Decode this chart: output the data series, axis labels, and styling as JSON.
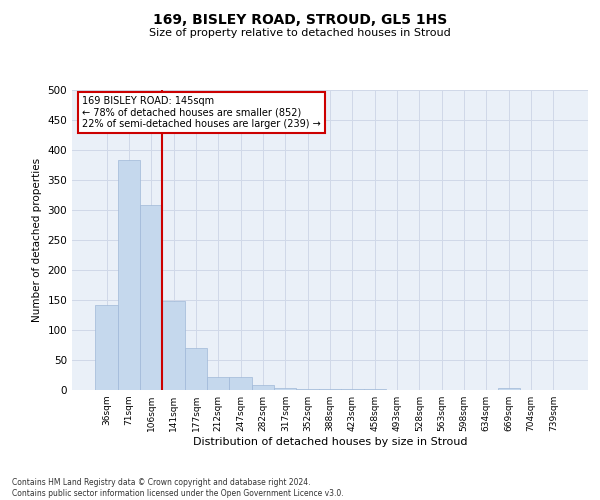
{
  "title1": "169, BISLEY ROAD, STROUD, GL5 1HS",
  "title2": "Size of property relative to detached houses in Stroud",
  "xlabel": "Distribution of detached houses by size in Stroud",
  "ylabel": "Number of detached properties",
  "bins_labels": [
    "36sqm",
    "71sqm",
    "106sqm",
    "141sqm",
    "177sqm",
    "212sqm",
    "247sqm",
    "282sqm",
    "317sqm",
    "352sqm",
    "388sqm",
    "423sqm",
    "458sqm",
    "493sqm",
    "528sqm",
    "563sqm",
    "598sqm",
    "634sqm",
    "669sqm",
    "704sqm",
    "739sqm"
  ],
  "bar_heights": [
    142,
    383,
    308,
    149,
    70,
    22,
    22,
    8,
    4,
    2,
    1,
    2,
    1,
    0,
    0,
    0,
    0,
    0,
    4,
    0,
    0
  ],
  "bar_color": "#c5d8ed",
  "bar_edge_color": "#a0b8d8",
  "grid_color": "#d0d8e8",
  "background_color": "#eaf0f8",
  "vline_color": "#cc0000",
  "annotation_text": "169 BISLEY ROAD: 145sqm\n← 78% of detached houses are smaller (852)\n22% of semi-detached houses are larger (239) →",
  "annotation_box_color": "#cc0000",
  "footer_text": "Contains HM Land Registry data © Crown copyright and database right 2024.\nContains public sector information licensed under the Open Government Licence v3.0.",
  "ylim": [
    0,
    500
  ],
  "yticks": [
    0,
    50,
    100,
    150,
    200,
    250,
    300,
    350,
    400,
    450,
    500
  ],
  "fig_width": 6.0,
  "fig_height": 5.0,
  "dpi": 100
}
